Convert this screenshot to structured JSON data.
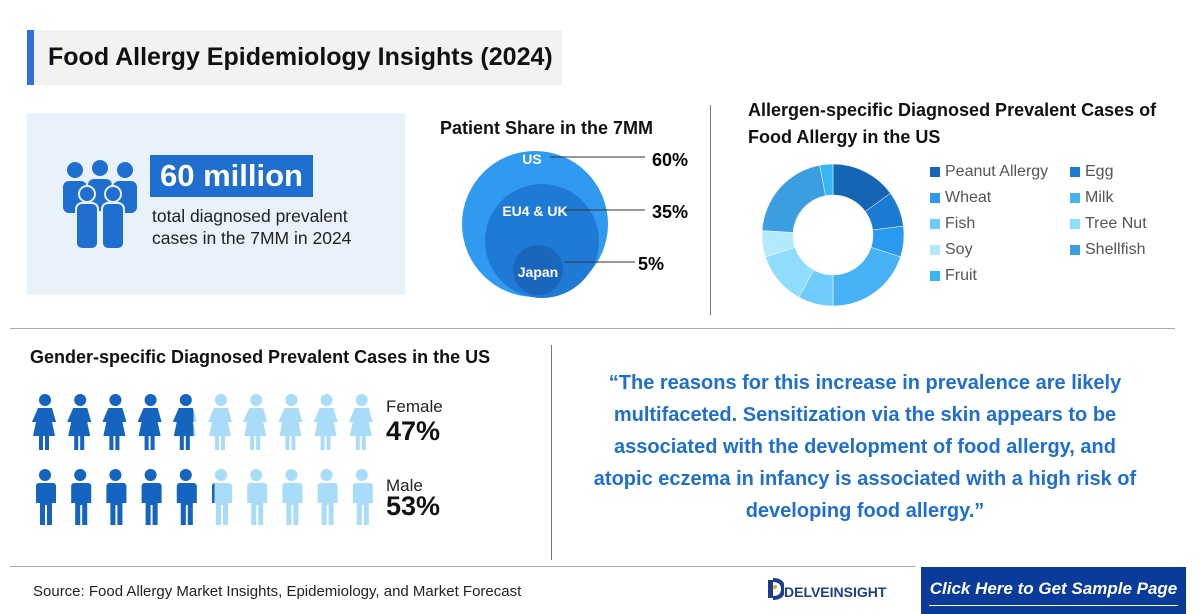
{
  "title": "Food Allergy Epidemiology Insights (2024)",
  "stat": {
    "value": "60 million",
    "description": "total diagnosed prevalent cases in the 7MM in 2024",
    "icon": "people-group-icon"
  },
  "patient_share": {
    "title": "Patient Share in the 7MM",
    "items": [
      {
        "label": "US",
        "value": "60%"
      },
      {
        "label": "EU4 & UK",
        "value": "35%"
      },
      {
        "label": "Japan",
        "value": "5%"
      }
    ],
    "colors": [
      "#2f9af0",
      "#1f7ad6",
      "#1a66bd"
    ]
  },
  "chart_data": {
    "type": "pie",
    "title": "Allergen-specific Diagnosed Prevalent Cases of Food Allergy in the US",
    "donut": true,
    "legend": "right",
    "categories": [
      "Peanut Allergy",
      "Egg",
      "Wheat",
      "Milk",
      "Fish",
      "Tree Nut",
      "Soy",
      "Shellfish",
      "Fruit"
    ],
    "values": [
      15,
      8,
      7,
      20,
      8,
      12,
      6,
      21,
      3
    ],
    "colors": [
      "#1565b4",
      "#1b7ad2",
      "#2a9af0",
      "#46b2f5",
      "#6ecbfb",
      "#8fdcfd",
      "#b3e9fd",
      "#3a9ee0",
      "#36b6f2"
    ]
  },
  "gender": {
    "title": "Gender-specific Diagnosed Prevalent Cases in the US",
    "female": {
      "label": "Female",
      "value": "47%",
      "fraction": 0.47
    },
    "male": {
      "label": "Male",
      "value": "53%",
      "fraction": 0.53
    },
    "dark": "#1565c0",
    "light": "#a8dcf8"
  },
  "quote": "“The reasons for this increase in prevalence are likely multifaceted. Sensitization via the skin appears to be associated with the development of food allergy, and atopic eczema in infancy is associated with a high risk of developing food allergy.”",
  "footer": {
    "source": "Source: Food Allergy Market Insights, Epidemiology, and Market Forecast",
    "logo": "DELVEINSIGHT",
    "cta": "Click Here to Get Sample Page"
  }
}
